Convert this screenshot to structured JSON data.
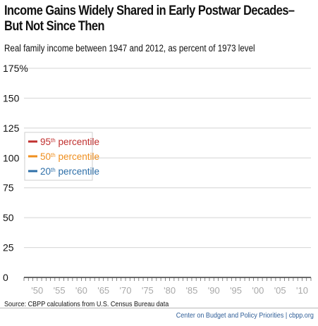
{
  "title_line1": "Income Gains Widely Shared in Early Postwar Decades–",
  "title_line2": "But Not Since Then",
  "subtitle": "Real family income between 1947 and 2012, as percent of 1973 level",
  "source": "Source: CBPP calculations from U.S. Census Bureau data",
  "credit": "Center on Budget and Policy Priorities | cbpp.org",
  "chart_data": {
    "type": "line",
    "ylim": [
      0,
      175
    ],
    "xlim": [
      1947,
      2012
    ],
    "y_ticks": [
      {
        "value": 175,
        "label": "175%"
      },
      {
        "value": 150,
        "label": "150"
      },
      {
        "value": 125,
        "label": "125"
      },
      {
        "value": 100,
        "label": "100"
      },
      {
        "value": 75,
        "label": "75"
      },
      {
        "value": 50,
        "label": "50"
      },
      {
        "value": 25,
        "label": "25"
      },
      {
        "value": 0,
        "label": "0"
      }
    ],
    "x_ticks": [
      {
        "value": 1950,
        "label": "'50"
      },
      {
        "value": 1955,
        "label": "'55"
      },
      {
        "value": 1960,
        "label": "'60"
      },
      {
        "value": 1965,
        "label": "'65"
      },
      {
        "value": 1970,
        "label": "'70"
      },
      {
        "value": 1975,
        "label": "'75"
      },
      {
        "value": 1980,
        "label": "'80"
      },
      {
        "value": 1985,
        "label": "'85"
      },
      {
        "value": 1990,
        "label": "'90"
      },
      {
        "value": 1995,
        "label": "'95"
      },
      {
        "value": 2000,
        "label": "'00"
      },
      {
        "value": 2005,
        "label": "'05"
      },
      {
        "value": 2010,
        "label": "'10"
      }
    ],
    "grid": true,
    "legend_position": "left-middle",
    "series": [
      {
        "name": "95th percentile",
        "num": "95",
        "sup": "th",
        "suffix": " percentile",
        "color": "#c0302f"
      },
      {
        "name": "50th percentile",
        "num": "50",
        "sup": "th",
        "suffix": " percentile",
        "color": "#ef8f1f"
      },
      {
        "name": "20th percentile",
        "num": "20",
        "sup": "th",
        "suffix": " percentile",
        "color": "#2e6fa8"
      }
    ]
  }
}
